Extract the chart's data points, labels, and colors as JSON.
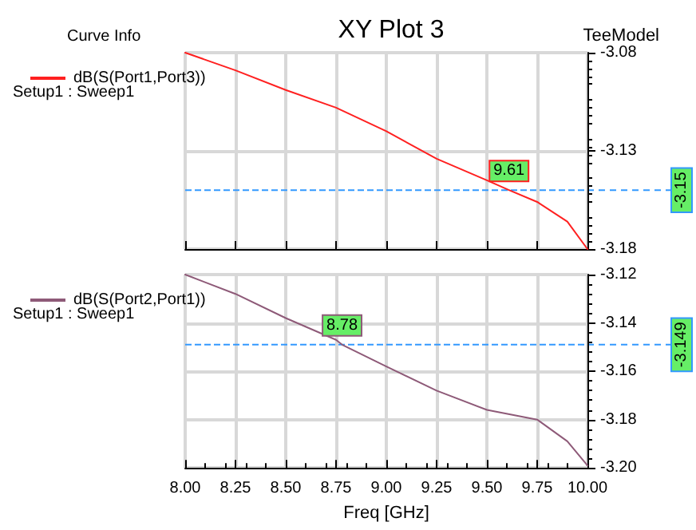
{
  "chart_data": [
    {
      "type": "line",
      "title": "XY Plot 3",
      "subtitle": "TeeModel",
      "legend_title": "Curve Info",
      "legend": "left",
      "grid": true,
      "tick_labels": "y",
      "marker": "none",
      "line_style": "solid",
      "xlim": [
        8,
        10
      ],
      "xticks": [
        8,
        8.25,
        8.5,
        8.75,
        9,
        9.25,
        9.5,
        9.75,
        10
      ],
      "ylim": [
        -3.18,
        -3.08
      ],
      "yticks": [
        -3.08,
        -3.13,
        -3.18
      ],
      "series": [
        {
          "name": "dB(S(Port1,Port3))",
          "color": "#ff2020",
          "x": [
            8,
            8.25,
            8.5,
            8.75,
            9,
            9.25,
            9.5,
            9.61,
            9.75,
            9.9,
            10
          ],
          "values": [
            -3.08,
            -3.089,
            -3.099,
            -3.108,
            -3.12,
            -3.134,
            -3.145,
            -3.15,
            -3.156,
            -3.166,
            -3.18
          ]
        }
      ],
      "ref_lines": [
        {
          "axis": "y",
          "value": -3.15,
          "label": "-3.15",
          "color": "#3399ff",
          "line_style": "dashed"
        }
      ],
      "annotations": [
        "Setup1 : Sweep1",
        {
          "text": "9.61",
          "x": 9.61,
          "y": -3.15
        }
      ]
    },
    {
      "type": "line",
      "xlabel": "Freq [GHz]",
      "legend": "left",
      "grid": true,
      "marker": "none",
      "line_style": "solid",
      "xlim": [
        8,
        10
      ],
      "xticks": [
        {
          "value": 8,
          "label": "8.00"
        },
        {
          "value": 8.25,
          "label": "8.25"
        },
        {
          "value": 8.5,
          "label": "8.50"
        },
        {
          "value": 8.75,
          "label": "8.75"
        },
        {
          "value": 9,
          "label": "9.00"
        },
        {
          "value": 9.25,
          "label": "9.25"
        },
        {
          "value": 9.5,
          "label": "9.50"
        },
        {
          "value": 9.75,
          "label": "9.75"
        },
        {
          "value": 10,
          "label": "10.00"
        }
      ],
      "ylim": [
        -3.2,
        -3.12
      ],
      "yticks": [
        -3.12,
        -3.14,
        -3.16,
        -3.18,
        {
          "value": -3.2,
          "label": "-3.20"
        }
      ],
      "series": [
        {
          "name": "dB(S(Port2,Port1))",
          "color": "#8e5a78",
          "x": [
            8,
            8.25,
            8.5,
            8.75,
            8.78,
            9,
            9.25,
            9.5,
            9.75,
            9.9,
            10
          ],
          "values": [
            -3.12,
            -3.128,
            -3.138,
            -3.147,
            -3.149,
            -3.158,
            -3.168,
            -3.176,
            -3.18,
            -3.189,
            -3.199
          ]
        }
      ],
      "ref_lines": [
        {
          "axis": "y",
          "value": -3.149,
          "label": "-3.149",
          "color": "#3399ff",
          "line_style": "dashed"
        }
      ],
      "annotations": [
        "Setup1 : Sweep1",
        {
          "text": "8.78",
          "x": 8.78,
          "y": -3.149
        }
      ]
    }
  ]
}
